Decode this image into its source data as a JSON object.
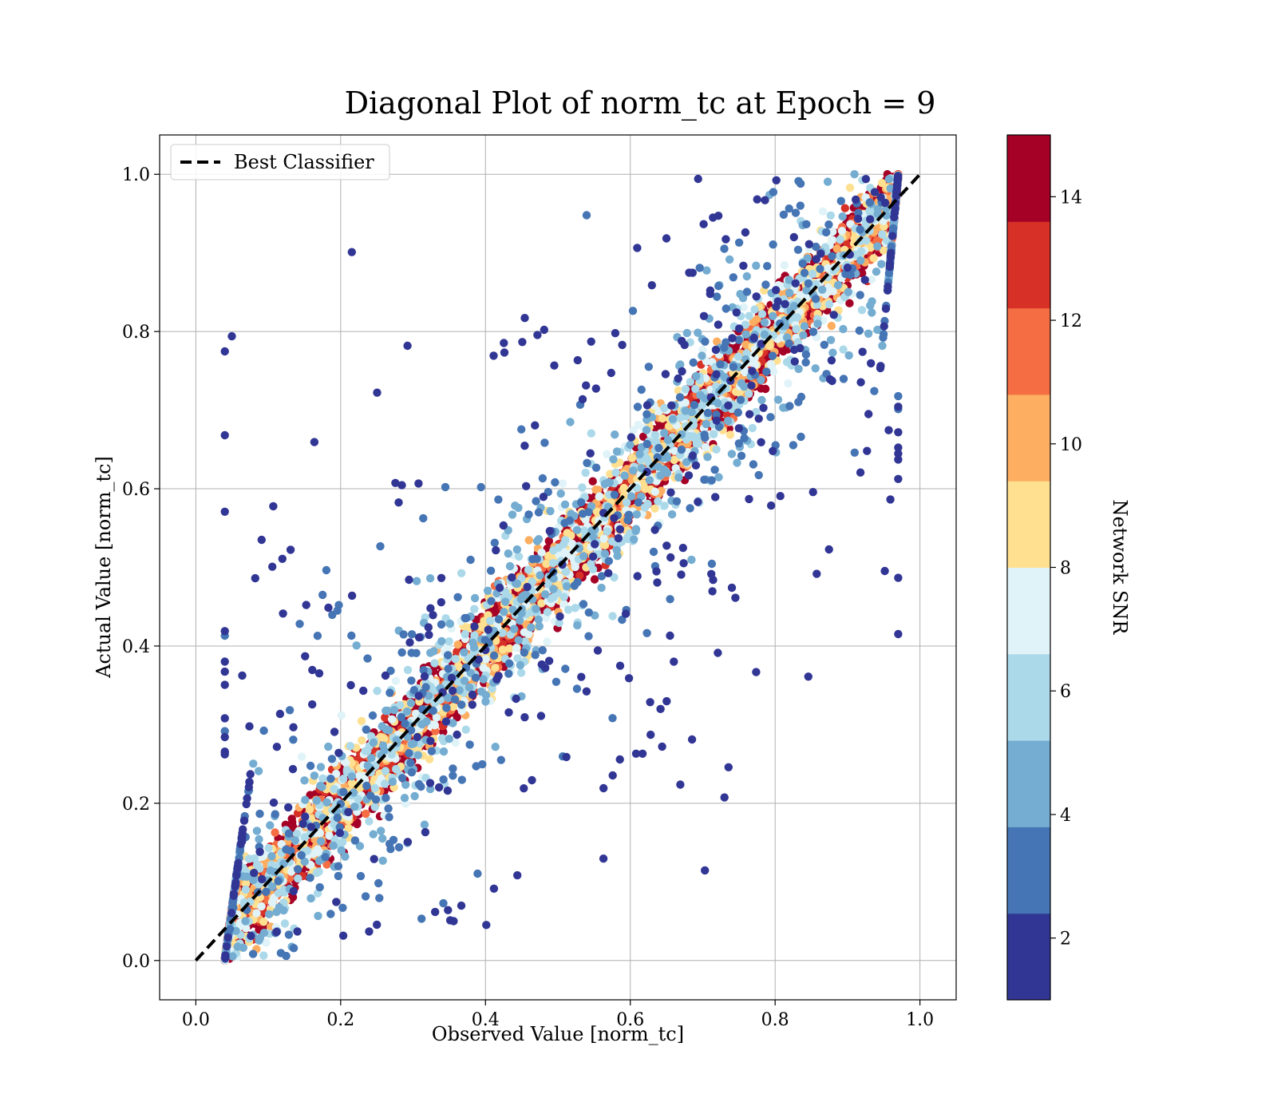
{
  "chart_data": {
    "type": "scatter",
    "title": "Diagonal Plot of norm_tc at Epoch = 9",
    "xlabel": "Observed Value [norm_tc]",
    "ylabel": "Actual Value [norm_tc]",
    "xlim": [
      -0.05,
      1.05
    ],
    "ylim": [
      -0.05,
      1.05
    ],
    "x_ticks": [
      0.0,
      0.2,
      0.4,
      0.6,
      0.8,
      1.0
    ],
    "y_ticks": [
      0.0,
      0.2,
      0.4,
      0.6,
      0.8,
      1.0
    ],
    "x_tick_labels": [
      "0.0",
      "0.2",
      "0.4",
      "0.6",
      "0.8",
      "1.0"
    ],
    "y_tick_labels": [
      "0.0",
      "0.2",
      "0.4",
      "0.6",
      "0.8",
      "1.0"
    ],
    "grid": true,
    "legend": {
      "placement": "top-left",
      "entries": [
        {
          "label": "Best Classifier",
          "style": "dashed",
          "color": "#000000"
        }
      ]
    },
    "reference_line": {
      "name": "Best Classifier",
      "x": [
        0.0,
        1.0
      ],
      "y": [
        0.0,
        1.0
      ]
    },
    "colorbar": {
      "label": "Network SNR",
      "range": [
        1,
        15
      ],
      "ticks": [
        2,
        4,
        6,
        8,
        10,
        12,
        14
      ],
      "tick_labels": [
        "2",
        "4",
        "6",
        "8",
        "10",
        "12",
        "14"
      ],
      "bins": 10,
      "colors": [
        "#313695",
        "#4575b4",
        "#74add1",
        "#abd9e9",
        "#e0f3f8",
        "#fee090",
        "#fdae61",
        "#f46d43",
        "#d73027",
        "#a50026"
      ]
    },
    "scatter_description": {
      "points": "dense cloud along the diagonal; high SNR (14+) near diagonal, low SNR points scattered far from it",
      "clip_range": [
        0.0,
        1.0
      ]
    }
  }
}
